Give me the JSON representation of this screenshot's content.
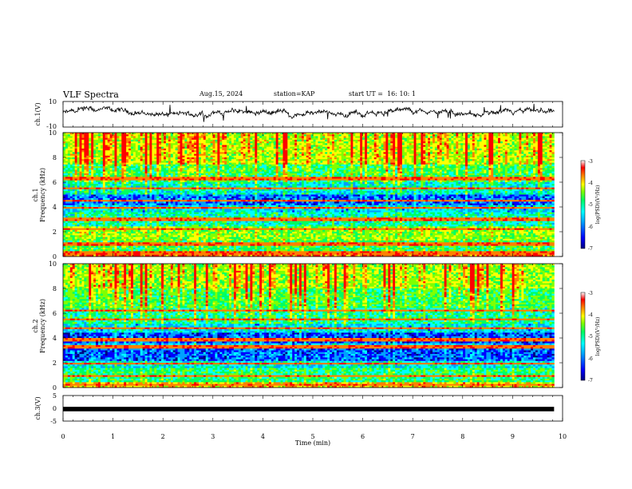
{
  "header": {
    "title": "VLF Spectra",
    "date": "Aug.15, 2024",
    "station": "station=KAP",
    "start": "start UT =  16: 10: 1"
  },
  "colors": {
    "spectrum": [
      "#000080",
      "#0000ff",
      "#00a0ff",
      "#00ffff",
      "#00ff60",
      "#80ff00",
      "#ffff00",
      "#ff8000",
      "#ff0000",
      "#ffffff"
    ],
    "trace": "#000000"
  },
  "chart_data": [
    {
      "type": "line",
      "panel": "ch1-waveform",
      "ylabel": "ch.1(V)",
      "ylim": [
        -10,
        10
      ],
      "yticks": [
        "10",
        "-10"
      ],
      "xlim": [
        0,
        10
      ],
      "x_end": 9.83,
      "mean_level": 1
    },
    {
      "type": "heatmap",
      "panel": "ch1-spectrogram",
      "ylabel_line1": "ch.1",
      "ylabel_line2": "Frequency (kHz)",
      "ylim": [
        0,
        10
      ],
      "yticks": [
        "0",
        "2",
        "4",
        "6",
        "8",
        "10"
      ],
      "xlim": [
        0,
        10
      ],
      "x_end": 9.83,
      "colorbar": {
        "label": "log(PSD)(V²/Hz)",
        "range": [
          -7,
          -3
        ],
        "ticks": [
          "-3",
          "-4",
          "-5",
          "-6",
          "-7"
        ]
      }
    },
    {
      "type": "heatmap",
      "panel": "ch2-spectrogram",
      "ylabel_line1": "ch.2",
      "ylabel_line2": "Frequency (kHz)",
      "ylim": [
        0,
        10
      ],
      "yticks": [
        "0",
        "2",
        "4",
        "6",
        "8",
        "10"
      ],
      "xlim": [
        0,
        10
      ],
      "x_end": 9.83,
      "colorbar": {
        "label": "log(PSD)(V²/Hz)",
        "range": [
          -7,
          -3
        ],
        "ticks": [
          "-3",
          "-4",
          "-5",
          "-6",
          "-7"
        ]
      }
    },
    {
      "type": "line",
      "panel": "ch3-signal",
      "ylabel": "ch.3(V)",
      "ylim": [
        -5,
        5
      ],
      "yticks": [
        "5",
        "0",
        "-5"
      ],
      "xlim": [
        0,
        10
      ],
      "x_end": 9.83,
      "mean_level": -0.3,
      "xlabel": "Time (min)",
      "xticks": [
        "0",
        "1",
        "2",
        "3",
        "4",
        "5",
        "6",
        "7",
        "8",
        "9",
        "10"
      ]
    }
  ]
}
